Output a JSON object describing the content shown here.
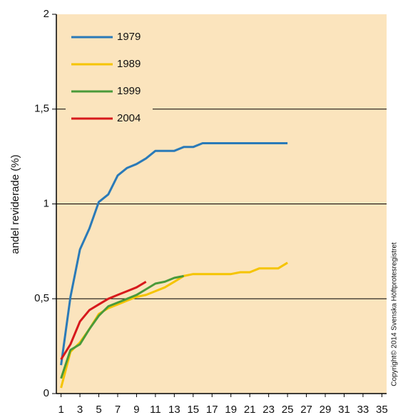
{
  "chart_data": {
    "type": "line",
    "ylabel": "andel reviderade (%)",
    "note": "Copyright© 2014 Svenska Höftprotesregistret",
    "x": [
      1,
      2,
      3,
      4,
      5,
      6,
      7,
      8,
      9,
      10,
      11,
      12,
      13,
      14,
      15,
      16,
      17,
      18,
      19,
      20,
      21,
      22,
      23,
      24,
      25
    ],
    "series": [
      {
        "name": "1979",
        "color": "#2a7ab8",
        "values": [
          0.15,
          0.51,
          0.76,
          0.87,
          1.01,
          1.05,
          1.15,
          1.19,
          1.21,
          1.24,
          1.28,
          1.28,
          1.28,
          1.3,
          1.3,
          1.32,
          1.32,
          1.32,
          1.32,
          1.32,
          1.32,
          1.32,
          1.32,
          1.32,
          1.32
        ]
      },
      {
        "name": "1989",
        "color": "#f5c400",
        "values": [
          0.03,
          0.22,
          0.27,
          0.34,
          0.42,
          0.45,
          0.47,
          0.49,
          0.51,
          0.52,
          0.54,
          0.56,
          0.59,
          0.62,
          0.63,
          0.63,
          0.63,
          0.63,
          0.63,
          0.64,
          0.64,
          0.66,
          0.66,
          0.66,
          0.69
        ]
      },
      {
        "name": "1999",
        "color": "#4a9a3a",
        "values": [
          0.08,
          0.23,
          0.26,
          0.34,
          0.41,
          0.46,
          0.48,
          0.5,
          0.52,
          0.55,
          0.58,
          0.59,
          0.61,
          0.62,
          null,
          null,
          null,
          null,
          null,
          null,
          null,
          null,
          null,
          null,
          null
        ]
      },
      {
        "name": "2004",
        "color": "#d7191c",
        "values": [
          0.18,
          0.26,
          0.38,
          0.44,
          0.47,
          0.5,
          0.52,
          0.54,
          0.56,
          0.59,
          null,
          null,
          null,
          null,
          null,
          null,
          null,
          null,
          null,
          null,
          null,
          null,
          null,
          null,
          null
        ]
      }
    ],
    "xlim": [
      0.5,
      35.5
    ],
    "xticks": [
      1,
      3,
      5,
      7,
      9,
      11,
      13,
      15,
      17,
      19,
      21,
      23,
      25,
      27,
      29,
      31,
      33,
      35
    ],
    "ylim": [
      0,
      2
    ],
    "yticks": [
      0,
      {
        "value": 0.5,
        "label": "0,5"
      },
      1,
      {
        "value": 1.5,
        "label": "1,5"
      },
      2
    ],
    "grid": true,
    "legend": "upper-left",
    "background": "#fbe4bd"
  }
}
